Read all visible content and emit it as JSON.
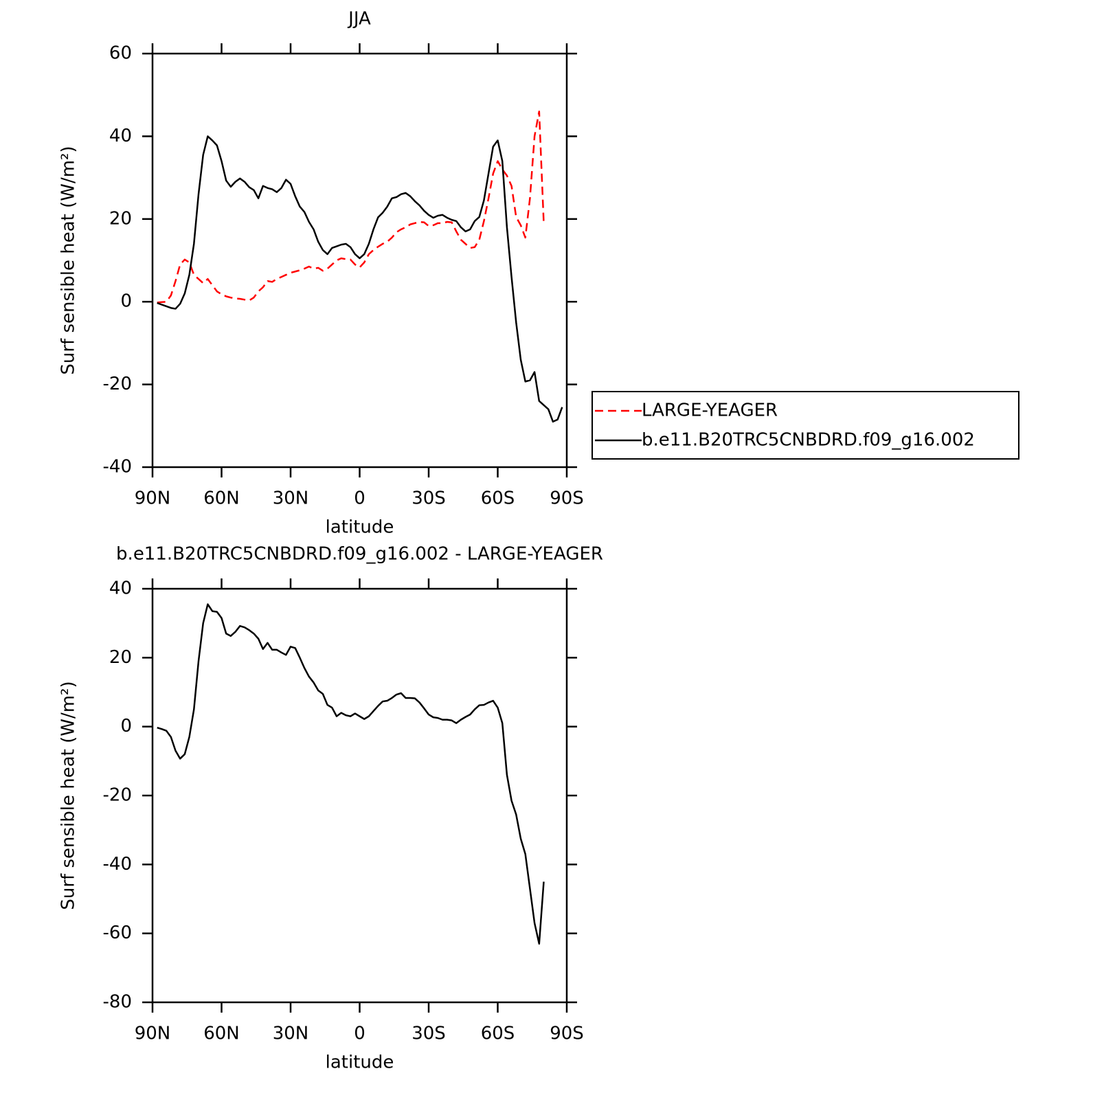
{
  "chart_data": [
    {
      "type": "line",
      "title": "JJA",
      "xlabel": "latitude",
      "ylabel": "Surf sensible heat (W/m²)",
      "x": [
        88,
        86,
        84,
        82,
        80,
        78,
        76,
        74,
        72,
        70,
        68,
        66,
        64,
        62,
        60,
        58,
        56,
        54,
        52,
        50,
        48,
        46,
        44,
        42,
        40,
        38,
        36,
        34,
        32,
        30,
        28,
        26,
        24,
        22,
        20,
        18,
        16,
        14,
        12,
        10,
        8,
        6,
        4,
        2,
        0,
        -2,
        -4,
        -6,
        -8,
        -10,
        -12,
        -14,
        -16,
        -18,
        -20,
        -22,
        -24,
        -26,
        -28,
        -30,
        -32,
        -34,
        -36,
        -38,
        -40,
        -42,
        -44,
        -46,
        -48,
        -50,
        -52,
        -54,
        -56,
        -58,
        -60,
        -62,
        -64,
        -66,
        -68,
        -70,
        -72,
        -74,
        -76,
        -78,
        -80,
        -82,
        -84,
        -86,
        -88
      ],
      "series": [
        {
          "name": "LARGE-YEAGER",
          "color": "#ff0000",
          "line_style": "dashed",
          "values": [
            -0.2,
            -0.1,
            0,
            1.5,
            5,
            9,
            10.2,
            9.5,
            6.5,
            5.5,
            4.5,
            5.5,
            4,
            2.5,
            1.8,
            1.3,
            1,
            0.8,
            0.7,
            0.5,
            0.3,
            1,
            2.5,
            3.5,
            5,
            4.8,
            5.5,
            6,
            6.5,
            7,
            7.3,
            7.6,
            8,
            8.5,
            8,
            8.2,
            7.5,
            8,
            9,
            10,
            10.5,
            10.3,
            10.2,
            9,
            8.3,
            9.5,
            11.5,
            12.5,
            13.3,
            14,
            14.5,
            15.5,
            16.8,
            17.5,
            18,
            18.7,
            19,
            19.3,
            19.2,
            18.3,
            18.5,
            19,
            19,
            19.3,
            19.2,
            17,
            15,
            14,
            13,
            13.2,
            15,
            19.5,
            25,
            31,
            34,
            32,
            30.5,
            28,
            20.5,
            18.5,
            15.5,
            25,
            40,
            46,
            19,
            null,
            null,
            null,
            null
          ]
        },
        {
          "name": "b.e11.B20TRC5CNBDRD.f09_g16.002",
          "color": "#000000",
          "line_style": "solid",
          "values": [
            -0.3,
            -0.7,
            -1.1,
            -1.5,
            -1.7,
            -0.5,
            2,
            6.5,
            14,
            26,
            35.5,
            40,
            39,
            37.8,
            34,
            29.3,
            27.8,
            29,
            29.8,
            29,
            27.7,
            27,
            25,
            28,
            27.5,
            27.2,
            26.5,
            27.5,
            29.5,
            28.5,
            25.5,
            23,
            21.7,
            19.3,
            17.5,
            14.5,
            12.5,
            11.5,
            13,
            13.4,
            13.8,
            14,
            13.2,
            11.5,
            10.5,
            11.5,
            14,
            17.5,
            20.4,
            21.5,
            23,
            25,
            25.3,
            26,
            26.3,
            25.5,
            24.3,
            23.3,
            22,
            21,
            20.3,
            20.8,
            21,
            20.3,
            19.8,
            19.5,
            18,
            17,
            17.5,
            19.5,
            20.5,
            24.5,
            31,
            37.5,
            39,
            34,
            18,
            6,
            -5,
            -14,
            -19.3,
            -19,
            -17,
            -24,
            -25,
            -26,
            -29,
            -28.5,
            -25.5
          ]
        }
      ],
      "xlim": [
        90,
        -90
      ],
      "xticks": [
        {
          "value": 90,
          "label": "90N"
        },
        {
          "value": 60,
          "label": "60N"
        },
        {
          "value": 30,
          "label": "30N"
        },
        0,
        {
          "value": -30,
          "label": "30S"
        },
        {
          "value": -60,
          "label": "60S"
        },
        {
          "value": -90,
          "label": "90S"
        }
      ],
      "ylim": [
        -40,
        60
      ],
      "yticks": [
        -40,
        -20,
        0,
        20,
        40,
        60
      ],
      "legend": "right"
    },
    {
      "type": "line",
      "title": "b.e11.B20TRC5CNBDRD.f09_g16.002 - LARGE-YEAGER",
      "xlabel": "latitude",
      "ylabel": "Surf sensible heat (W/m²)",
      "x": [
        88,
        86,
        84,
        82,
        80,
        78,
        76,
        74,
        72,
        70,
        68,
        66,
        64,
        62,
        60,
        58,
        56,
        54,
        52,
        50,
        48,
        46,
        44,
        42,
        40,
        38,
        36,
        34,
        32,
        30,
        28,
        26,
        24,
        22,
        20,
        18,
        16,
        14,
        12,
        10,
        8,
        6,
        4,
        2,
        0,
        -2,
        -4,
        -6,
        -8,
        -10,
        -12,
        -14,
        -16,
        -18,
        -20,
        -22,
        -24,
        -26,
        -28,
        -30,
        -32,
        -34,
        -36,
        -38,
        -40,
        -42,
        -44,
        -46,
        -48,
        -50,
        -52,
        -54,
        -56,
        -58,
        -60,
        -62,
        -64,
        -66,
        -68,
        -70,
        -72,
        -74,
        -76,
        -78,
        -80
      ],
      "color": "#000000",
      "values": [
        -0.3,
        -0.7,
        -1.2,
        -3,
        -7,
        -9.3,
        -8,
        -3,
        5,
        19,
        30,
        35.5,
        33.5,
        33.3,
        31.5,
        27,
        26.3,
        27.5,
        29.2,
        28.8,
        28,
        27,
        25.5,
        22.5,
        24.3,
        22.3,
        22.3,
        21.5,
        20.8,
        23.2,
        22.8,
        20,
        17,
        14.5,
        12.8,
        10.5,
        9.5,
        6.3,
        5.5,
        3,
        4,
        3.3,
        3,
        3.8,
        3,
        2.2,
        3,
        4.5,
        6,
        7.3,
        7.5,
        8.3,
        9.3,
        9.7,
        8.3,
        8.3,
        8.2,
        7,
        5.3,
        3.5,
        2.7,
        2.5,
        2,
        2,
        1.8,
        1,
        2,
        2.8,
        3.5,
        5,
        6.2,
        6.3,
        7,
        7.5,
        5.5,
        1,
        -14,
        -21.5,
        -25.5,
        -32.5,
        -37,
        -47,
        -57,
        -63,
        -45
      ],
      "xlim": [
        90,
        -90
      ],
      "xticks": [
        {
          "value": 90,
          "label": "90N"
        },
        {
          "value": 60,
          "label": "60N"
        },
        {
          "value": 30,
          "label": "30N"
        },
        0,
        {
          "value": -30,
          "label": "30S"
        },
        {
          "value": -60,
          "label": "60S"
        },
        {
          "value": -90,
          "label": "90S"
        }
      ],
      "ylim": [
        -80,
        40
      ],
      "yticks": [
        -80,
        -60,
        -40,
        -20,
        0,
        20,
        40
      ]
    }
  ]
}
